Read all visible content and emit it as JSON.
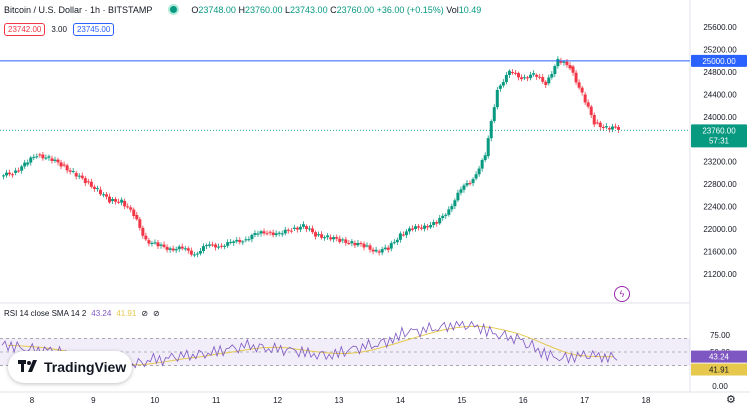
{
  "header": {
    "symbol_title": "Bitcoin / U.S. Dollar · 1h · BITSTAMP",
    "ohlc": {
      "o_label": "O",
      "o": "23748.00",
      "h_label": "H",
      "h": "23760.00",
      "l_label": "L",
      "l": "23743.00",
      "c_label": "C",
      "c": "23760.00",
      "change": "+36.00 (+0.15%)",
      "vol_label": "Vol",
      "vol": "10.49"
    },
    "sell_price": "23742.00",
    "spread": "3.00",
    "buy_price": "23745.00"
  },
  "price_axis": {
    "ticks": [
      "25600.00",
      "25200.00",
      "24800.00",
      "24400.00",
      "24000.00",
      "23600.00",
      "23200.00",
      "22800.00",
      "22400.00",
      "22000.00",
      "21600.00",
      "21200.00"
    ],
    "alert_label": "25000.00",
    "current_price": "23760.00",
    "countdown": "57:31"
  },
  "rsi": {
    "title": "RSI 14 close SMA 14 2",
    "value_rsi": "43.24",
    "value_sma": "41.91",
    "icons": [
      "eye-off-icon",
      "eye-off-icon"
    ],
    "ticks": [
      "75.00",
      "50.00",
      "25.00",
      "0.00"
    ]
  },
  "time_axis": {
    "labels": [
      "8",
      "9",
      "10",
      "11",
      "12",
      "13",
      "14",
      "15",
      "16",
      "17",
      "18"
    ]
  },
  "branding": {
    "logo_text": "TradingView"
  },
  "colors": {
    "up": "#089981",
    "down": "#f23645",
    "alert": "#2962ff",
    "rsi": "#7e57c2",
    "sma": "#e6c84d"
  },
  "chart_data": {
    "type": "candlestick",
    "title": "Bitcoin / U.S. Dollar · 1h · BITSTAMP",
    "x": [
      "8",
      "9",
      "10",
      "11",
      "12",
      "13",
      "14",
      "15",
      "16",
      "17",
      "18"
    ],
    "ylim": [
      21000,
      25800
    ],
    "close_series": [
      23000,
      23150,
      23330,
      23260,
      23150,
      23000,
      22850,
      22700,
      22500,
      22500,
      22250,
      21800,
      21700,
      21650,
      21650,
      21550,
      21700,
      21700,
      21750,
      21800,
      21900,
      21950,
      21900,
      22000,
      22050,
      21900,
      21850,
      21800,
      21750,
      21700,
      21600,
      21650,
      21900,
      22000,
      22050,
      22100,
      22350,
      22700,
      22900,
      23300,
      24500,
      24800,
      24700,
      24750,
      24600,
      25000,
      24900,
      24400,
      23900,
      23800,
      23800
    ],
    "rsi": {
      "values": [
        60,
        58,
        55,
        52,
        50,
        45,
        40,
        35,
        32,
        28,
        30,
        35,
        40,
        38,
        42,
        45,
        48,
        50,
        52,
        55,
        60,
        58,
        55,
        52,
        50,
        48,
        47,
        46,
        50,
        55,
        60,
        65,
        70,
        78,
        80,
        85,
        88,
        90,
        88,
        85,
        80,
        75,
        70,
        60,
        50,
        45,
        42,
        43,
        44,
        43,
        43
      ],
      "sma_last": 41.91,
      "last": 43.24,
      "band_top": 70,
      "band_bottom": 30
    },
    "alert_level": 25000,
    "last_price": 23760
  }
}
